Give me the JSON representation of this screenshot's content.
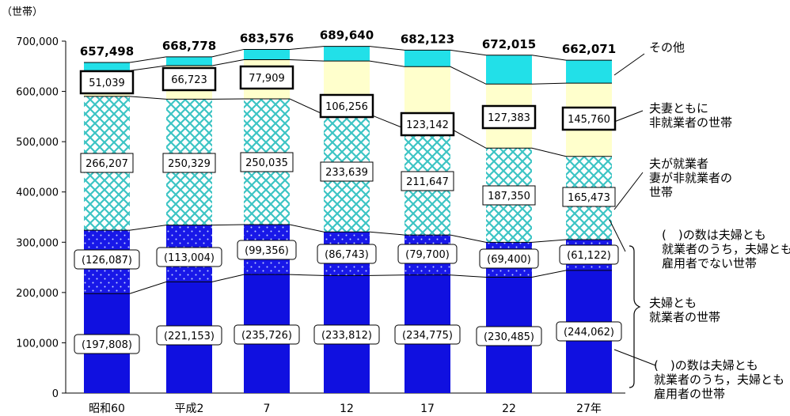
{
  "chart_data": {
    "type": "bar",
    "stacked": true,
    "unit": "（世帯）",
    "ylim": [
      0,
      700000
    ],
    "yticks": [
      "0",
      "100,000",
      "200,000",
      "300,000",
      "400,000",
      "500,000",
      "600,000",
      "700,000"
    ],
    "categories": [
      "昭和60",
      "平成2",
      "7",
      "12",
      "17",
      "22",
      "27年"
    ],
    "totals": [
      "657,498",
      "668,778",
      "683,576",
      "689,640",
      "682,123",
      "672,015",
      "662,071"
    ],
    "series": [
      {
        "values": [
          197808,
          221153,
          235726,
          233812,
          234775,
          230485,
          244062
        ],
        "labels": [
          "(197,808)",
          "(221,153)",
          "(235,726)",
          "(233,812)",
          "(234,775)",
          "(230,485)",
          "(244,062)"
        ],
        "color": "#1010e0"
      },
      {
        "values": [
          126087,
          113004,
          99356,
          86743,
          79700,
          69400,
          61122
        ],
        "labels": [
          "(126,087)",
          "(113,004)",
          "(99,356)",
          "(86,743)",
          "(79,700)",
          "(69,400)",
          "(61,122)"
        ],
        "color": "#1818e8"
      },
      {
        "values": [
          266207,
          250329,
          250035,
          233639,
          211647,
          187350,
          165473
        ],
        "labels": [
          "266,207",
          "250,329",
          "250,035",
          "233,639",
          "211,647",
          "187,350",
          "165,473"
        ],
        "color": "#3cc4c4"
      },
      {
        "values": [
          51039,
          66723,
          77909,
          106256,
          123142,
          127383,
          145760
        ],
        "labels": [
          "51,039",
          "66,723",
          "77,909",
          "106,256",
          "123,142",
          "127,383",
          "145,760"
        ],
        "color": "#ffffcc"
      },
      {
        "values": [
          16357,
          17569,
          20550,
          29190,
          32859,
          57397,
          45654
        ],
        "labels": [],
        "color": "#22e0e8"
      }
    ],
    "legend": [
      {
        "lines": [
          "その他"
        ]
      },
      {
        "lines": [
          "夫妻ともに",
          "非就業者の世帯"
        ]
      },
      {
        "lines": [
          "夫が就業者",
          "妻が非就業者の",
          "世帯"
        ]
      },
      {
        "lines": [
          "(　)の数は夫婦とも",
          "就業者のうち，夫婦とも",
          "雇用者でない世帯"
        ]
      },
      {
        "lines": [
          "夫婦とも",
          "就業者の世帯"
        ]
      },
      {
        "lines": [
          "(　)の数は夫婦とも",
          "就業者のうち，夫婦とも",
          "雇用者の世帯"
        ]
      }
    ]
  }
}
